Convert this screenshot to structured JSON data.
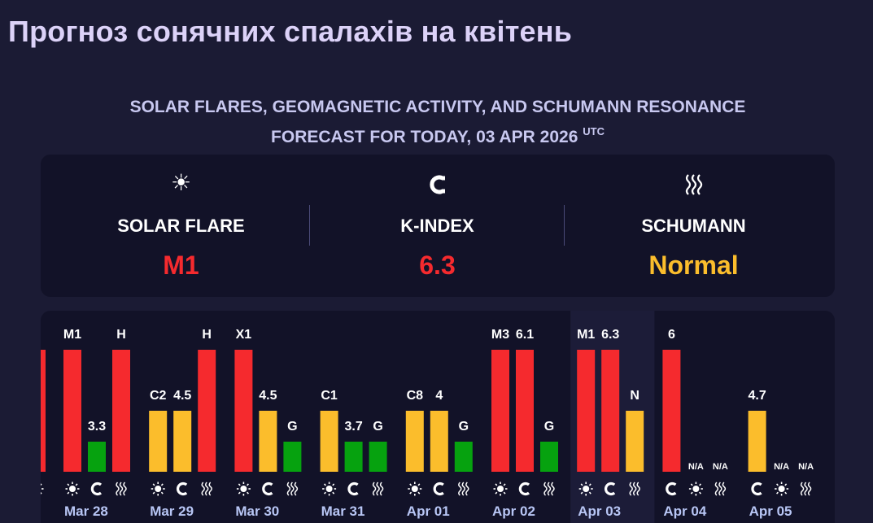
{
  "page": {
    "title": "Прогноз сонячних спалахів на квітень",
    "subtitle_line1": "SOLAR FLARES, GEOMAGNETIC ACTIVITY, AND SCHUMANN RESONANCE",
    "subtitle_line2": "FORECAST FOR TODAY, 03 APR 2026",
    "subtitle_sup": "UTC"
  },
  "summary": {
    "solar_flare": {
      "icon": "sun-icon",
      "label": "SOLAR FLARE",
      "value": "M1",
      "color": "#f52a2e"
    },
    "k_index": {
      "icon": "magnet-icon",
      "label": "K-INDEX",
      "value": "6.3",
      "color": "#f52a2e"
    },
    "schumann": {
      "icon": "waves-icon",
      "label": "SCHUMANN",
      "value": "Normal",
      "color": "#fbbd2c"
    }
  },
  "colors": {
    "red": "#f52a2e",
    "yellow": "#fbbd2c",
    "green": "#06a20f",
    "na": "#3a3a58",
    "today_bg": "#1c1c38"
  },
  "chart_data": {
    "type": "bar",
    "levels_note": "bars show level: 4 = high, 2 = medium, 1 = low, 0 = no data",
    "days": [
      {
        "date": "",
        "partial": true,
        "bars": [
          {
            "kind": "solar",
            "label": "",
            "level": 4,
            "color": "red"
          }
        ]
      },
      {
        "date": "Mar 28",
        "bars": [
          {
            "kind": "solar",
            "label": "M1",
            "level": 4,
            "color": "red"
          },
          {
            "kind": "kindex",
            "label": "3.3",
            "level": 1,
            "color": "green"
          },
          {
            "kind": "schumann",
            "label": "H",
            "level": 4,
            "color": "red"
          }
        ]
      },
      {
        "date": "Mar 29",
        "bars": [
          {
            "kind": "solar",
            "label": "C2",
            "level": 2,
            "color": "yellow"
          },
          {
            "kind": "kindex",
            "label": "4.5",
            "level": 2,
            "color": "yellow"
          },
          {
            "kind": "schumann",
            "label": "H",
            "level": 4,
            "color": "red"
          }
        ]
      },
      {
        "date": "Mar 30",
        "bars": [
          {
            "kind": "solar",
            "label": "X1",
            "level": 4,
            "color": "red"
          },
          {
            "kind": "kindex",
            "label": "4.5",
            "level": 2,
            "color": "yellow"
          },
          {
            "kind": "schumann",
            "label": "G",
            "level": 1,
            "color": "green"
          }
        ]
      },
      {
        "date": "Mar 31",
        "bars": [
          {
            "kind": "solar",
            "label": "C1",
            "level": 2,
            "color": "yellow"
          },
          {
            "kind": "kindex",
            "label": "3.7",
            "level": 1,
            "color": "green"
          },
          {
            "kind": "schumann",
            "label": "G",
            "level": 1,
            "color": "green"
          }
        ]
      },
      {
        "date": "Apr 01",
        "bars": [
          {
            "kind": "solar",
            "label": "C8",
            "level": 2,
            "color": "yellow"
          },
          {
            "kind": "kindex",
            "label": "4",
            "level": 2,
            "color": "yellow"
          },
          {
            "kind": "schumann",
            "label": "G",
            "level": 1,
            "color": "green"
          }
        ]
      },
      {
        "date": "Apr 02",
        "bars": [
          {
            "kind": "solar",
            "label": "M3",
            "level": 4,
            "color": "red"
          },
          {
            "kind": "kindex",
            "label": "6.1",
            "level": 4,
            "color": "red"
          },
          {
            "kind": "schumann",
            "label": "G",
            "level": 1,
            "color": "green"
          }
        ]
      },
      {
        "date": "Apr 03",
        "today": true,
        "bars": [
          {
            "kind": "solar",
            "label": "M1",
            "level": 4,
            "color": "red"
          },
          {
            "kind": "kindex",
            "label": "6.3",
            "level": 4,
            "color": "red"
          },
          {
            "kind": "schumann",
            "label": "N",
            "level": 2,
            "color": "yellow"
          }
        ]
      },
      {
        "date": "Apr 04",
        "bars": [
          {
            "kind": "kindex",
            "label": "6",
            "level": 4,
            "color": "red"
          },
          {
            "kind": "solar",
            "label": "N/A",
            "level": 0,
            "color": "na"
          },
          {
            "kind": "schumann",
            "label": "N/A",
            "level": 0,
            "color": "na"
          }
        ]
      },
      {
        "date": "Apr 05",
        "bars": [
          {
            "kind": "kindex",
            "label": "4.7",
            "level": 2,
            "color": "yellow"
          },
          {
            "kind": "solar",
            "label": "N/A",
            "level": 0,
            "color": "na"
          },
          {
            "kind": "schumann",
            "label": "N/A",
            "level": 0,
            "color": "na"
          }
        ]
      }
    ]
  }
}
